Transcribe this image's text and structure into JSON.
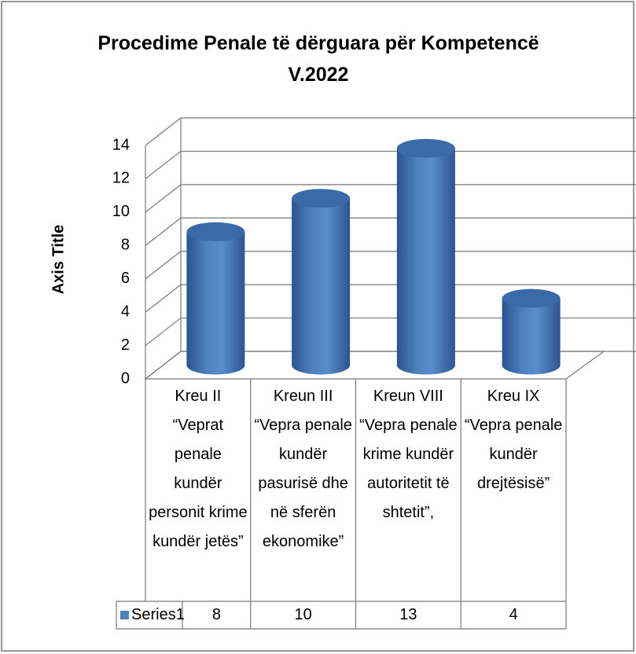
{
  "chart_data": {
    "type": "bar",
    "title": "Procedime Penale të dërguara për Kompetencë V.2022",
    "y_label": "Axis Title",
    "categories": [
      "Kreu II “Veprat penale kundër personit krime kundër jetës”",
      "Kreun III “Vepra penale kundër pasurisë dhe në sferën ekonomike”",
      "Kreun VIII “Vepra penale krime kundër autoritetit të shtetit”,",
      "Kreu IX “Vepra penale kundër drejtësisë”"
    ],
    "series": [
      {
        "name": "Series1",
        "color": "#4f81bd",
        "values": [
          8,
          10,
          13,
          4
        ]
      }
    ],
    "ylim": [
      0,
      14
    ],
    "yticks": [
      0,
      2,
      4,
      6,
      8,
      10,
      12,
      14
    ],
    "grid": true
  }
}
